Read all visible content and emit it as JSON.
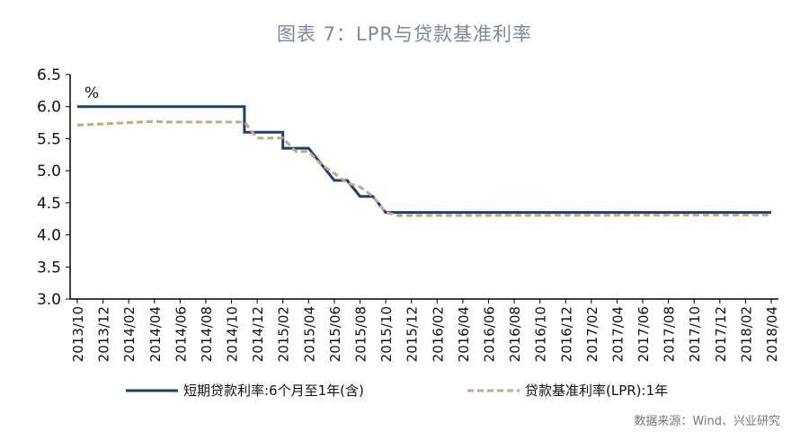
{
  "chart_data": {
    "type": "line",
    "title": "图表 7：LPR与贷款基准利率",
    "yunit": "%",
    "ylim": [
      3.0,
      6.5
    ],
    "yticks": [
      "6.5",
      "6.0",
      "5.5",
      "5.0",
      "4.5",
      "4.0",
      "3.5",
      "3.0"
    ],
    "xticks": [
      "2013/10",
      "2013/12",
      "2014/02",
      "2014/04",
      "2014/06",
      "2014/08",
      "2014/10",
      "2014/12",
      "2015/02",
      "2015/04",
      "2015/06",
      "2015/08",
      "2015/10",
      "2015/12",
      "2016/02",
      "2016/04",
      "2016/06",
      "2016/08",
      "2016/10",
      "2016/12",
      "2017/02",
      "2017/04",
      "2017/06",
      "2017/08",
      "2017/10",
      "2017/12",
      "2018/02",
      "2018/04"
    ],
    "grid": false,
    "legend_position": "bottom",
    "series": [
      {
        "name": "短期贷款利率:6个月至1年(含)",
        "color": "#1f3f6e",
        "style": "solid",
        "points": [
          [
            "2013/10",
            6.0
          ],
          [
            "2014/11",
            6.0
          ],
          [
            "2014/11",
            5.6
          ],
          [
            "2015/02",
            5.6
          ],
          [
            "2015/02",
            5.35
          ],
          [
            "2015/04",
            5.35
          ],
          [
            "2015/05",
            5.1
          ],
          [
            "2015/06",
            4.85
          ],
          [
            "2015/07",
            4.85
          ],
          [
            "2015/08",
            4.6
          ],
          [
            "2015/09",
            4.6
          ],
          [
            "2015/10",
            4.35
          ],
          [
            "2018/04",
            4.35
          ]
        ]
      },
      {
        "name": "贷款基准利率(LPR):1年",
        "color": "#c2aa84",
        "style": "dashed",
        "points": [
          [
            "2013/10",
            5.71
          ],
          [
            "2014/04",
            5.77
          ],
          [
            "2014/05",
            5.76
          ],
          [
            "2014/11",
            5.76
          ],
          [
            "2014/12",
            5.51
          ],
          [
            "2015/02",
            5.51
          ],
          [
            "2015/03",
            5.3
          ],
          [
            "2015/04",
            5.3
          ],
          [
            "2015/05",
            5.09
          ],
          [
            "2015/06",
            4.96
          ],
          [
            "2015/07",
            4.81
          ],
          [
            "2015/08",
            4.75
          ],
          [
            "2015/09",
            4.6
          ],
          [
            "2015/10",
            4.35
          ],
          [
            "2015/11",
            4.3
          ],
          [
            "2018/04",
            4.31
          ]
        ]
      }
    ]
  },
  "source": "数据来源：Wind、兴业研究"
}
